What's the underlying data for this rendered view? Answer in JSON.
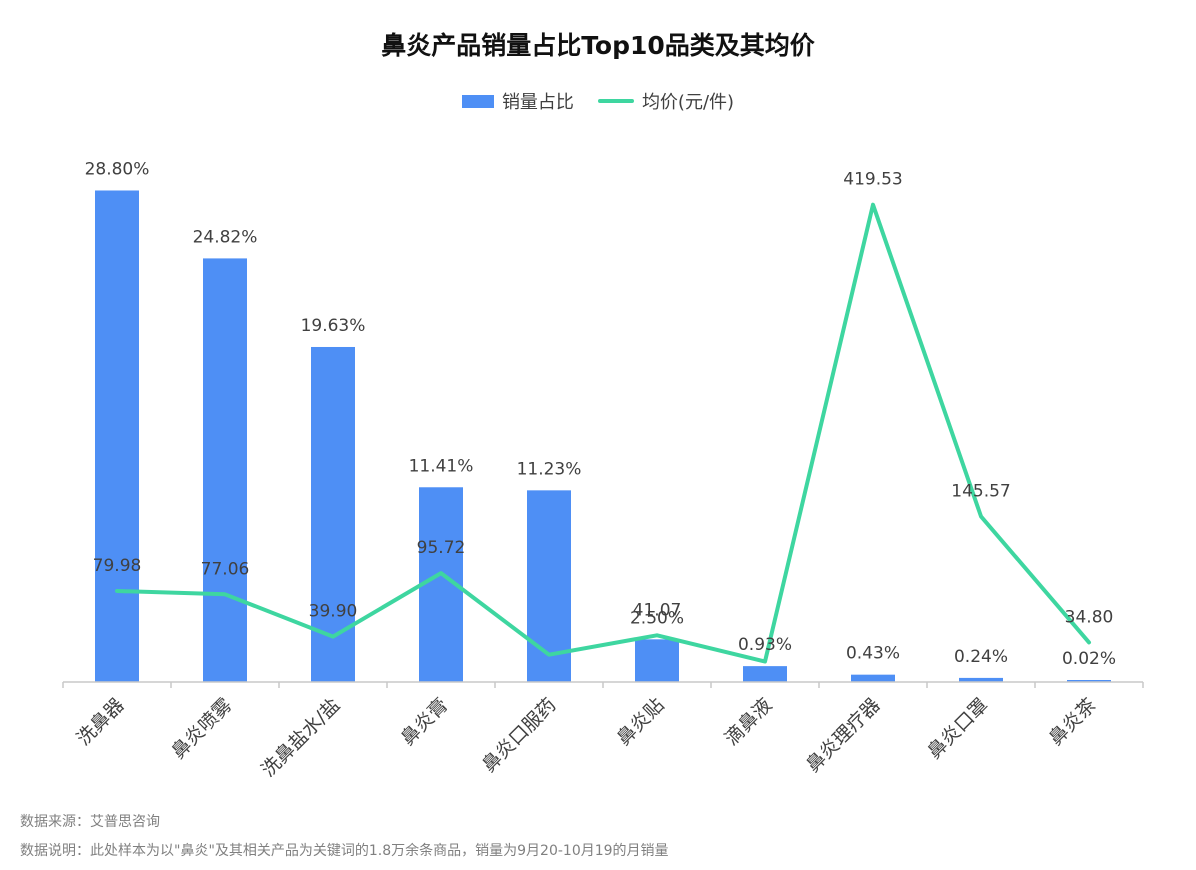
{
  "chart_data": {
    "type": "bar",
    "title": "鼻炎产品销量占比Top10品类及其均价",
    "categories": [
      "洗鼻器",
      "鼻炎喷雾",
      "洗鼻盐水/盐",
      "鼻炎膏",
      "鼻炎口服药",
      "鼻炎贴",
      "滴鼻液",
      "鼻炎理疗器",
      "鼻炎口罩",
      "鼻炎茶"
    ],
    "series": [
      {
        "name": "销量占比",
        "type": "bar",
        "values": [
          28.8,
          24.82,
          19.63,
          11.41,
          11.23,
          2.5,
          0.93,
          0.43,
          0.24,
          0.02
        ],
        "labels": [
          "28.80%",
          "24.82%",
          "19.63%",
          "11.41%",
          "11.23%",
          "2.50%",
          "0.93%",
          "0.43%",
          "0.24%",
          "0.02%"
        ],
        "color": "#4e8ff5"
      },
      {
        "name": "均价(元/件)",
        "type": "line",
        "values": [
          79.98,
          77.06,
          39.9,
          95.72,
          24.0,
          41.07,
          18.0,
          419.53,
          145.57,
          34.8
        ],
        "labels": [
          "79.98",
          "77.06",
          "39.90",
          "95.72",
          "",
          "41.07",
          "",
          "419.53",
          "145.57",
          "34.80"
        ],
        "color": "#3ed6a0"
      }
    ],
    "bar_axis_max": 30,
    "line_axis_max": 450,
    "legend_position": "top-center",
    "grid": false
  },
  "footnotes": {
    "source": "数据来源：艾普思咨询",
    "note": "数据说明：此处样本为以\"鼻炎\"及其相关产品为关键词的1.8万余条商品，销量为9月20-10月19的月销量"
  }
}
